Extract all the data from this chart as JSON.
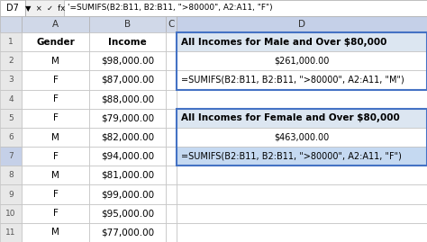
{
  "formula_bar_cell": "D7",
  "formula_bar_text": "'=SUMIFS(B2:B11, B2:B11, \">80000\", A2:A11, \"F\")",
  "col_a": [
    "Gender",
    "M",
    "F",
    "F",
    "F",
    "M",
    "F",
    "M",
    "F",
    "F",
    "M"
  ],
  "col_b": [
    "Income",
    "$98,000.00",
    "$87,000.00",
    "$88,000.00",
    "$79,000.00",
    "$82,000.00",
    "$94,000.00",
    "$81,000.00",
    "$99,000.00",
    "$95,000.00",
    "$77,000.00"
  ],
  "d1_title1": "All Incomes for Male and Over $80,000",
  "d2_value1": "$261,000.00",
  "d3_formula1": "=SUMIFS(B2:B11, B2:B11, \">80000\", A2:A11, \"M\")",
  "d5_title2": "All Incomes for Female and Over $80,000",
  "d6_value2": "$463,000.00",
  "d7_formula2": "=SUMIFS(B2:B11, B2:B11, \">80000\", A2:A11, \"F\")",
  "col_header_bg": "#d0d8e8",
  "col_d_header_bg": "#c5d0e8",
  "cell_white": "#ffffff",
  "cell_blue_title": "#dce6f1",
  "cell_blue_selected": "#c5d9f1",
  "grid_color": "#c0c0c0",
  "row_header_bg": "#e8e8e8",
  "row7_header_bg": "#c5d0e8",
  "formula_bar_bg": "#ffffff",
  "top_bar_bg": "#f0f0f0",
  "border_blue": "#4472c4",
  "figsize": [
    4.74,
    2.69
  ],
  "dpi": 100
}
